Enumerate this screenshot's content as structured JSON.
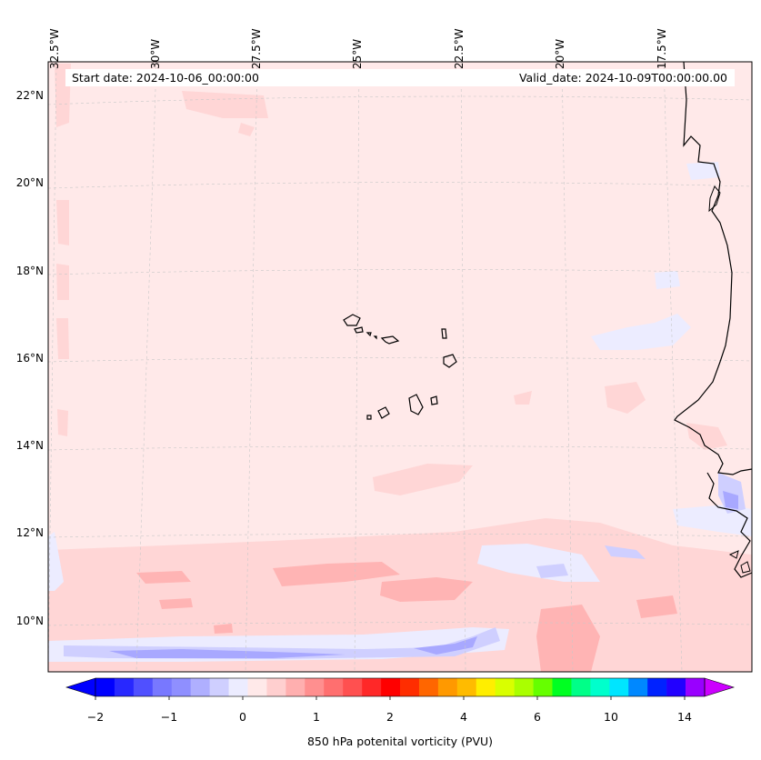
{
  "map": {
    "start_date": "Start date: 2024-10-06_00:00:00",
    "valid_date": "Valid_date: 2024-10-09T00:00:00.00",
    "lon_labels": [
      "32.5°W",
      "30°W",
      "27.5°W",
      "25°W",
      "22.5°W",
      "20°W",
      "17.5°W"
    ],
    "lat_labels": [
      "22°N",
      "20°N",
      "18°N",
      "16°N",
      "14°N",
      "12°N",
      "10°N"
    ],
    "background_color": "#ffe9e9",
    "coastline_color": "#000000"
  },
  "colorbar": {
    "title": "850 hPa potenital vorticity (PVU)",
    "tick_labels": [
      "−2",
      "−1",
      "0",
      "1",
      "2",
      "4",
      "6",
      "10",
      "14"
    ],
    "colors": [
      "#0000ff",
      "#2828ff",
      "#5050ff",
      "#7878ff",
      "#8f8fff",
      "#afafff",
      "#cfcfff",
      "#ececff",
      "#ffe9e9",
      "#ffcfcf",
      "#ffafaf",
      "#ff8f8f",
      "#ff6f6f",
      "#ff5050",
      "#ff2828",
      "#ff0000",
      "#ff2d00",
      "#ff6600",
      "#ff9900",
      "#ffbb00",
      "#ffee00",
      "#d9ff00",
      "#aaff00",
      "#66ff00",
      "#00ff22",
      "#00ff88",
      "#00ffcc",
      "#00e5ff",
      "#0088ff",
      "#0022ff",
      "#2200ff",
      "#9900ff"
    ],
    "min_color": "#0000ff",
    "max_color": "#cc00ff"
  }
}
